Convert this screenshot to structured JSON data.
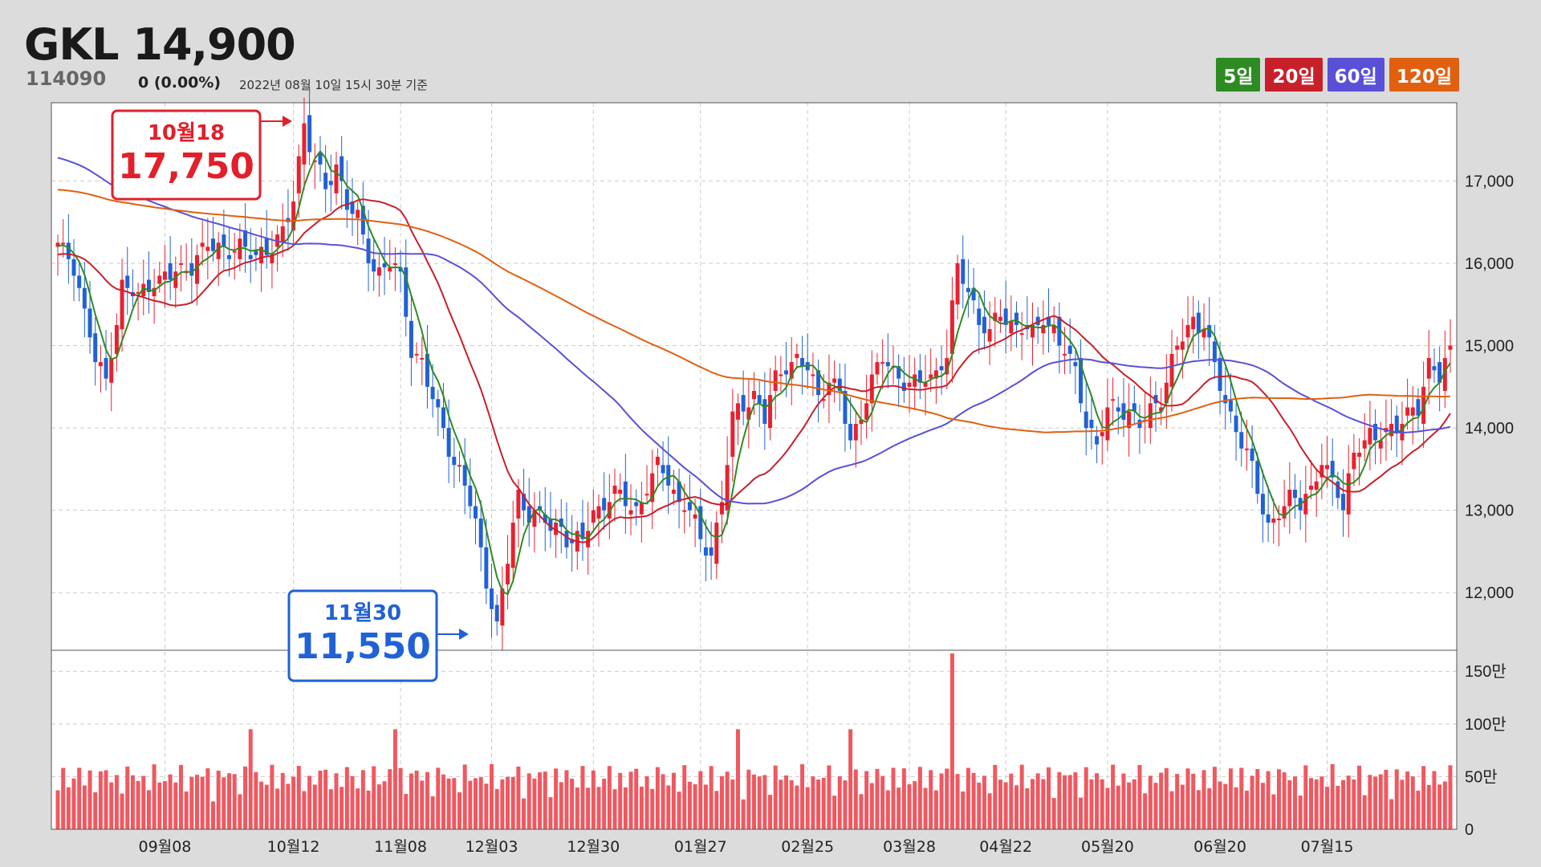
{
  "header": {
    "name_price": "GKL 14,900",
    "code": "114090",
    "change": "0 (0.00%)",
    "as_of": "2022년 08월 10일 15시 30분 기준"
  },
  "legend": [
    {
      "label": "5일",
      "color": "#2e8b22"
    },
    {
      "label": "20일",
      "color": "#c8202a"
    },
    {
      "label": "60일",
      "color": "#5a50d8"
    },
    {
      "label": "120일",
      "color": "#e06010"
    }
  ],
  "annotations": {
    "high": {
      "date": "10월18",
      "value": "17,750"
    },
    "low": {
      "date": "11월30",
      "value": "11,550"
    }
  },
  "chart_data": {
    "type": "candlestick",
    "x_labels": [
      "09월08",
      "10월12",
      "11월08",
      "12월03",
      "12월30",
      "01월27",
      "02월25",
      "03월28",
      "04월22",
      "05월20",
      "06월20",
      "07월15"
    ],
    "x_label_days": [
      20,
      44,
      64,
      81,
      100,
      120,
      140,
      159,
      177,
      196,
      217,
      237
    ],
    "y_ticks": [
      "17,000",
      "16,000",
      "15,000",
      "14,000",
      "13,000",
      "12,000"
    ],
    "y_tick_values": [
      17000,
      16000,
      15000,
      14000,
      13000,
      12000
    ],
    "ylim": [
      11300,
      17950
    ],
    "vol_ticks": [
      "150만",
      "100만",
      "50만",
      "0"
    ],
    "vol_tick_values": [
      1500000,
      1000000,
      500000,
      0
    ],
    "vol_ylim": [
      0,
      1700000
    ],
    "trading_days": 261,
    "series_colors": {
      "up": "#e8212e",
      "down": "#2161d6",
      "volume": "#f05860"
    },
    "closes_keypoints": [
      [
        0,
        16200
      ],
      [
        3,
        16000
      ],
      [
        5,
        15400
      ],
      [
        7,
        14800
      ],
      [
        9,
        14600
      ],
      [
        12,
        15700
      ],
      [
        15,
        15600
      ],
      [
        18,
        15800
      ],
      [
        20,
        15800
      ],
      [
        25,
        16000
      ],
      [
        28,
        16200
      ],
      [
        32,
        16200
      ],
      [
        36,
        16100
      ],
      [
        40,
        16200
      ],
      [
        42,
        16300
      ],
      [
        44,
        16800
      ],
      [
        45,
        17300
      ],
      [
        46,
        17700
      ],
      [
        48,
        17200
      ],
      [
        50,
        16900
      ],
      [
        52,
        17200
      ],
      [
        54,
        16700
      ],
      [
        56,
        16500
      ],
      [
        58,
        16100
      ],
      [
        60,
        15900
      ],
      [
        62,
        16000
      ],
      [
        64,
        15800
      ],
      [
        66,
        15000
      ],
      [
        68,
        14800
      ],
      [
        70,
        14300
      ],
      [
        72,
        14000
      ],
      [
        74,
        13600
      ],
      [
        76,
        13300
      ],
      [
        78,
        12800
      ],
      [
        80,
        12200
      ],
      [
        82,
        11550
      ],
      [
        84,
        12400
      ],
      [
        86,
        13200
      ],
      [
        88,
        13000
      ],
      [
        90,
        12900
      ],
      [
        92,
        12800
      ],
      [
        94,
        12800
      ],
      [
        96,
        12600
      ],
      [
        98,
        12600
      ],
      [
        100,
        13000
      ],
      [
        102,
        13100
      ],
      [
        104,
        13200
      ],
      [
        106,
        13100
      ],
      [
        108,
        13000
      ],
      [
        110,
        13300
      ],
      [
        112,
        13500
      ],
      [
        114,
        13400
      ],
      [
        116,
        13100
      ],
      [
        118,
        13000
      ],
      [
        120,
        12600
      ],
      [
        122,
        12500
      ],
      [
        124,
        13100
      ],
      [
        126,
        14100
      ],
      [
        128,
        14300
      ],
      [
        130,
        14400
      ],
      [
        132,
        14100
      ],
      [
        134,
        14600
      ],
      [
        136,
        14800
      ],
      [
        138,
        14800
      ],
      [
        140,
        14700
      ],
      [
        142,
        14400
      ],
      [
        144,
        14600
      ],
      [
        146,
        14400
      ],
      [
        148,
        13800
      ],
      [
        150,
        14200
      ],
      [
        152,
        14600
      ],
      [
        154,
        14800
      ],
      [
        156,
        14700
      ],
      [
        158,
        14600
      ],
      [
        160,
        14500
      ],
      [
        162,
        14600
      ],
      [
        164,
        14700
      ],
      [
        166,
        14900
      ],
      [
        168,
        15900
      ],
      [
        170,
        15700
      ],
      [
        172,
        15300
      ],
      [
        174,
        15100
      ],
      [
        176,
        15400
      ],
      [
        178,
        15300
      ],
      [
        180,
        15200
      ],
      [
        182,
        15100
      ],
      [
        184,
        15400
      ],
      [
        186,
        15200
      ],
      [
        188,
        14900
      ],
      [
        190,
        14700
      ],
      [
        192,
        14100
      ],
      [
        194,
        13800
      ],
      [
        196,
        14200
      ],
      [
        198,
        14300
      ],
      [
        200,
        14200
      ],
      [
        202,
        14000
      ],
      [
        204,
        14200
      ],
      [
        206,
        14400
      ],
      [
        208,
        14800
      ],
      [
        210,
        15100
      ],
      [
        212,
        15300
      ],
      [
        214,
        15300
      ],
      [
        216,
        14700
      ],
      [
        218,
        14300
      ],
      [
        220,
        14000
      ],
      [
        222,
        13700
      ],
      [
        224,
        13200
      ],
      [
        226,
        12800
      ],
      [
        228,
        13000
      ],
      [
        230,
        13100
      ],
      [
        232,
        13100
      ],
      [
        234,
        13300
      ],
      [
        236,
        13600
      ],
      [
        238,
        13300
      ],
      [
        240,
        13100
      ],
      [
        242,
        13700
      ],
      [
        244,
        13800
      ],
      [
        246,
        13900
      ],
      [
        248,
        14000
      ],
      [
        250,
        14000
      ],
      [
        252,
        14100
      ],
      [
        254,
        14300
      ],
      [
        256,
        14800
      ],
      [
        258,
        14600
      ],
      [
        260,
        14900
      ]
    ]
  }
}
